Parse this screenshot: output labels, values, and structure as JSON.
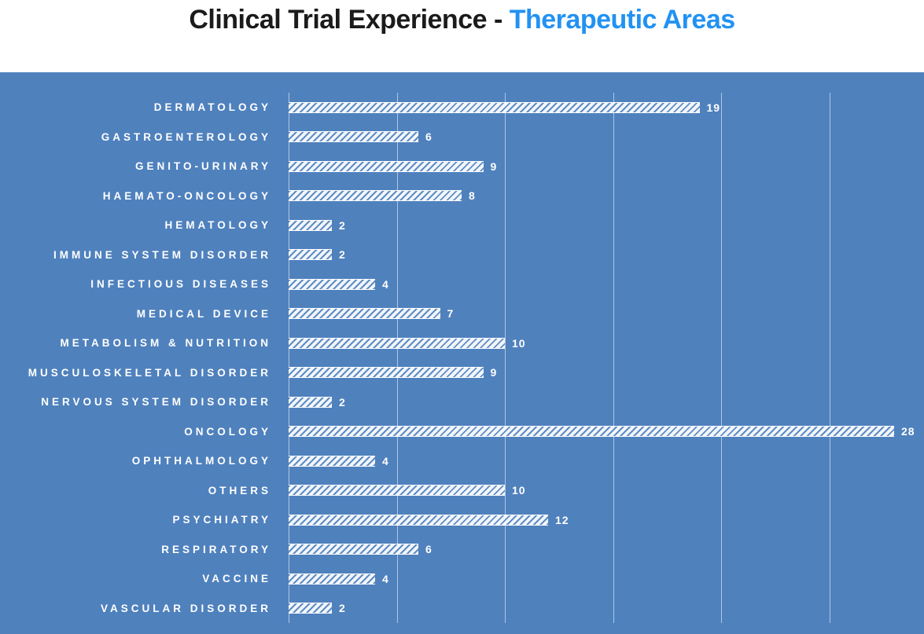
{
  "title": {
    "black_part": "Clinical Trial Experience - ",
    "blue_part": "Therapeutic Areas",
    "accent_color": "#2292f2"
  },
  "chart_data": {
    "type": "bar",
    "orientation": "horizontal",
    "title": "Clinical Trial Experience - Therapeutic Areas",
    "xlabel": "",
    "ylabel": "",
    "categories": [
      "DERMATOLOGY",
      "GASTROENTEROLOGY",
      "GENITO-URINARY",
      "HAEMATO-ONCOLOGY",
      "HEMATOLOGY",
      "IMMUNE SYSTEM DISORDER",
      "INFECTIOUS DISEASES",
      "MEDICAL DEVICE",
      "METABOLISM & NUTRITION",
      "MUSCULOSKELETAL DISORDER",
      "NERVOUS SYSTEM DISORDER",
      "ONCOLOGY",
      "OPHTHALMOLOGY",
      "OTHERS",
      "PSYCHIATRY",
      "RESPIRATORY",
      "VACCINE",
      "VASCULAR DISORDER"
    ],
    "values": [
      19,
      6,
      9,
      8,
      2,
      2,
      4,
      7,
      10,
      9,
      2,
      28,
      4,
      10,
      12,
      6,
      4,
      2
    ],
    "value_labels_shown": true,
    "xlim": [
      0,
      29.4
    ],
    "gridline_interval": 5,
    "gridlines_at": [
      0,
      5,
      10,
      15,
      20,
      25
    ],
    "grid": true,
    "legend": false,
    "colors": {
      "plot_background": "#4f81bd",
      "gridline": "rgba(255,255,255,0.55)",
      "bar_fill": "#ffffff",
      "bar_pattern": "diagonal-hatch",
      "label_text": "#ffffff"
    }
  }
}
